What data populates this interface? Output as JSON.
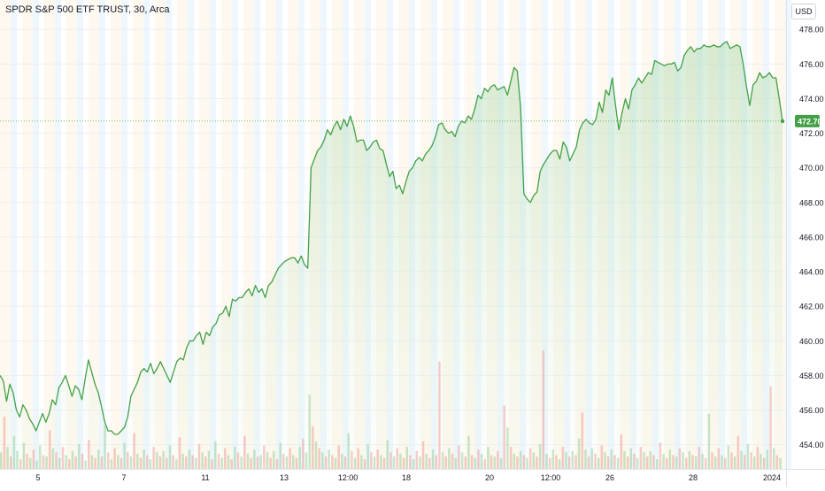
{
  "chart_data": {
    "type": "area",
    "title": "SPDR S&P 500 ETF TRUST, 30, Arca",
    "currency": "USD",
    "last_price": 472.7,
    "last_price_label": "472.70",
    "line_color": "#43a047",
    "fill_color": "#c8e6c9",
    "volume_up_color": "#4caf50",
    "volume_down_color": "#ef5350",
    "ylim": [
      452.6,
      479.7
    ],
    "y_ticks": [
      454,
      456,
      458,
      460,
      462,
      464,
      466,
      468,
      470,
      472,
      474,
      476,
      478
    ],
    "y_tick_labels": [
      "454.00",
      "456.00",
      "458.00",
      "460.00",
      "462.00",
      "464.00",
      "466.00",
      "468.00",
      "470.00",
      "472.00",
      "474.00",
      "476.00",
      "478.00"
    ],
    "x_tick_labels": [
      "5",
      "7",
      "11",
      "13",
      "12:00",
      "18",
      "20",
      "12:00",
      "26",
      "28",
      "2024"
    ],
    "grid": true,
    "series": [
      {
        "values": [
          458.0,
          457.7,
          456.5,
          457.5,
          457.0,
          456.0,
          455.6,
          456.3,
          456.0,
          455.5,
          455.2,
          454.8,
          455.3,
          455.8,
          455.3,
          455.8,
          456.6,
          456.3,
          457.3,
          457.6,
          458.0,
          457.4,
          456.8,
          457.4,
          457.2,
          456.6,
          457.8,
          458.9,
          458.2,
          457.5,
          457.0,
          456.2,
          455.3,
          454.8,
          454.8,
          454.6,
          454.6,
          454.8,
          455.0,
          455.6,
          456.8,
          457.2,
          457.6,
          458.2,
          458.4,
          458.2,
          458.7,
          458.1,
          458.4,
          458.8,
          458.4,
          458.0,
          457.6,
          458.2,
          458.8,
          459.0,
          458.9,
          459.6,
          460.0,
          460.0,
          460.3,
          460.5,
          459.8,
          460.5,
          460.3,
          460.8,
          461.0,
          461.5,
          461.6,
          462.0,
          461.4,
          462.4,
          462.3,
          462.5,
          462.5,
          462.8,
          463.0,
          462.6,
          463.2,
          462.8,
          463.0,
          462.5,
          463.2,
          463.4,
          463.8,
          464.2,
          464.4,
          464.6,
          464.7,
          464.8,
          464.8,
          464.5,
          464.9,
          464.4,
          464.2,
          470.0,
          470.5,
          471.0,
          471.2,
          471.6,
          472.2,
          471.9,
          472.4,
          472.7,
          472.2,
          472.8,
          472.4,
          473.0,
          472.4,
          471.5,
          471.6,
          471.6,
          471.0,
          471.2,
          471.5,
          471.6,
          471.1,
          471.0,
          470.2,
          469.5,
          469.8,
          468.8,
          469.0,
          468.5,
          469.2,
          469.8,
          470.0,
          470.4,
          470.6,
          470.4,
          470.8,
          471.0,
          471.3,
          471.8,
          472.5,
          472.6,
          472.2,
          472.0,
          472.1,
          471.8,
          472.4,
          472.7,
          472.6,
          473.0,
          472.8,
          473.4,
          474.2,
          474.0,
          474.6,
          474.4,
          474.7,
          474.8,
          474.5,
          474.6,
          474.7,
          474.2,
          475.0,
          475.8,
          475.6,
          473.5,
          468.5,
          468.2,
          468.0,
          468.4,
          468.6,
          469.8,
          470.2,
          470.5,
          470.8,
          471.0,
          471.0,
          470.5,
          471.5,
          471.2,
          470.4,
          470.8,
          471.2,
          472.2,
          472.6,
          472.8,
          472.6,
          472.5,
          472.8,
          473.8,
          473.2,
          474.5,
          474.2,
          475.2,
          473.6,
          472.2,
          473.2,
          474.0,
          473.4,
          474.5,
          474.8,
          475.2,
          474.9,
          475.2,
          475.5,
          475.4,
          476.2,
          476.1,
          476.0,
          475.9,
          476.0,
          476.0,
          476.1,
          475.6,
          475.8,
          476.5,
          476.8,
          477.0,
          476.7,
          476.9,
          476.9,
          477.1,
          477.0,
          477.0,
          477.1,
          477.0,
          477.0,
          477.2,
          477.3,
          476.9,
          477.0,
          477.1,
          477.0,
          476.0,
          474.7,
          473.6,
          474.8,
          475.0,
          475.5,
          475.2,
          475.3,
          475.5,
          475.2,
          475.2,
          474.0,
          472.7
        ]
      }
    ],
    "volume": [
      [
        1.2,
        1
      ],
      [
        3.8,
        0
      ],
      [
        1.6,
        1
      ],
      [
        0.9,
        0
      ],
      [
        2.4,
        1
      ],
      [
        1.3,
        1
      ],
      [
        0.7,
        0
      ],
      [
        1.9,
        1
      ],
      [
        1.1,
        0
      ],
      [
        0.8,
        1
      ],
      [
        1.4,
        0
      ],
      [
        0.6,
        1
      ],
      [
        1.7,
        1
      ],
      [
        1.0,
        0
      ],
      [
        0.9,
        1
      ],
      [
        2.8,
        0
      ],
      [
        1.5,
        1
      ],
      [
        1.2,
        0
      ],
      [
        0.8,
        1
      ],
      [
        1.6,
        0
      ],
      [
        1.0,
        1
      ],
      [
        0.7,
        0
      ],
      [
        1.3,
        1
      ],
      [
        0.9,
        0
      ],
      [
        1.8,
        1
      ],
      [
        1.1,
        0
      ],
      [
        0.6,
        1
      ],
      [
        2.1,
        0
      ],
      [
        1.0,
        1
      ],
      [
        0.8,
        0
      ],
      [
        1.4,
        1
      ],
      [
        0.9,
        0
      ],
      [
        3.2,
        1
      ],
      [
        1.2,
        0
      ],
      [
        0.7,
        1
      ],
      [
        1.5,
        0
      ],
      [
        1.0,
        1
      ],
      [
        0.8,
        0
      ],
      [
        1.9,
        1
      ],
      [
        1.2,
        0
      ],
      [
        0.9,
        1
      ],
      [
        2.6,
        0
      ],
      [
        1.1,
        1
      ],
      [
        0.8,
        0
      ],
      [
        1.4,
        1
      ],
      [
        1.0,
        0
      ],
      [
        0.7,
        1
      ],
      [
        1.6,
        0
      ],
      [
        1.2,
        1
      ],
      [
        0.9,
        0
      ],
      [
        1.3,
        1
      ],
      [
        0.8,
        0
      ],
      [
        1.7,
        1
      ],
      [
        1.0,
        0
      ],
      [
        0.7,
        1
      ],
      [
        2.3,
        0
      ],
      [
        1.1,
        1
      ],
      [
        0.9,
        0
      ],
      [
        1.4,
        1
      ],
      [
        1.0,
        0
      ],
      [
        0.8,
        1
      ],
      [
        1.8,
        0
      ],
      [
        1.2,
        1
      ],
      [
        0.9,
        0
      ],
      [
        1.3,
        1
      ],
      [
        0.7,
        0
      ],
      [
        2.0,
        1
      ],
      [
        1.1,
        0
      ],
      [
        0.8,
        1
      ],
      [
        1.5,
        0
      ],
      [
        1.0,
        1
      ],
      [
        0.7,
        0
      ],
      [
        1.6,
        1
      ],
      [
        1.2,
        0
      ],
      [
        0.9,
        1
      ],
      [
        2.4,
        0
      ],
      [
        1.1,
        1
      ],
      [
        0.8,
        0
      ],
      [
        1.4,
        1
      ],
      [
        0.9,
        0
      ],
      [
        1.0,
        1
      ],
      [
        1.7,
        0
      ],
      [
        1.2,
        1
      ],
      [
        0.8,
        0
      ],
      [
        1.3,
        1
      ],
      [
        0.7,
        0
      ],
      [
        1.9,
        1
      ],
      [
        1.1,
        0
      ],
      [
        0.9,
        1
      ],
      [
        1.5,
        0
      ],
      [
        1.0,
        1
      ],
      [
        0.8,
        0
      ],
      [
        1.6,
        1
      ],
      [
        2.2,
        0
      ],
      [
        1.2,
        1
      ],
      [
        5.4,
        1
      ],
      [
        3.1,
        0
      ],
      [
        2.0,
        1
      ],
      [
        1.5,
        0
      ],
      [
        1.2,
        1
      ],
      [
        0.9,
        0
      ],
      [
        1.4,
        1
      ],
      [
        1.0,
        0
      ],
      [
        0.8,
        1
      ],
      [
        1.7,
        0
      ],
      [
        1.1,
        1
      ],
      [
        0.9,
        0
      ],
      [
        2.6,
        1
      ],
      [
        1.3,
        0
      ],
      [
        0.8,
        1
      ],
      [
        1.5,
        0
      ],
      [
        1.0,
        1
      ],
      [
        0.7,
        0
      ],
      [
        1.8,
        1
      ],
      [
        1.2,
        0
      ],
      [
        0.9,
        1
      ],
      [
        1.4,
        0
      ],
      [
        1.0,
        1
      ],
      [
        0.8,
        0
      ],
      [
        2.1,
        1
      ],
      [
        1.2,
        0
      ],
      [
        0.9,
        1
      ],
      [
        1.5,
        0
      ],
      [
        1.1,
        1
      ],
      [
        0.8,
        0
      ],
      [
        1.6,
        1
      ],
      [
        1.0,
        0
      ],
      [
        0.7,
        1
      ],
      [
        1.3,
        0
      ],
      [
        0.9,
        1
      ],
      [
        2.0,
        0
      ],
      [
        1.1,
        1
      ],
      [
        0.8,
        0
      ],
      [
        1.4,
        1
      ],
      [
        1.0,
        0
      ],
      [
        7.8,
        0
      ],
      [
        1.2,
        1
      ],
      [
        0.9,
        0
      ],
      [
        1.5,
        1
      ],
      [
        1.1,
        0
      ],
      [
        0.8,
        1
      ],
      [
        1.7,
        0
      ],
      [
        1.2,
        1
      ],
      [
        0.9,
        0
      ],
      [
        2.4,
        1
      ],
      [
        1.0,
        0
      ],
      [
        0.8,
        1
      ],
      [
        1.4,
        0
      ],
      [
        1.1,
        1
      ],
      [
        0.7,
        0
      ],
      [
        1.6,
        1
      ],
      [
        1.0,
        0
      ],
      [
        0.9,
        1
      ],
      [
        1.3,
        0
      ],
      [
        0.8,
        1
      ],
      [
        4.6,
        0
      ],
      [
        3.0,
        1
      ],
      [
        1.6,
        0
      ],
      [
        1.1,
        1
      ],
      [
        0.9,
        0
      ],
      [
        1.3,
        1
      ],
      [
        1.0,
        0
      ],
      [
        0.8,
        1
      ],
      [
        1.5,
        0
      ],
      [
        1.2,
        1
      ],
      [
        0.9,
        0
      ],
      [
        1.8,
        1
      ],
      [
        8.6,
        0
      ],
      [
        1.1,
        1
      ],
      [
        0.8,
        0
      ],
      [
        1.4,
        1
      ],
      [
        1.0,
        0
      ],
      [
        0.7,
        1
      ],
      [
        1.6,
        0
      ],
      [
        1.2,
        1
      ],
      [
        0.9,
        0
      ],
      [
        1.3,
        1
      ],
      [
        1.0,
        0
      ],
      [
        2.2,
        1
      ],
      [
        4.1,
        0
      ],
      [
        1.4,
        1
      ],
      [
        0.9,
        0
      ],
      [
        1.5,
        1
      ],
      [
        1.1,
        0
      ],
      [
        0.8,
        1
      ],
      [
        1.7,
        0
      ],
      [
        1.2,
        1
      ],
      [
        0.9,
        0
      ],
      [
        1.4,
        1
      ],
      [
        1.0,
        0
      ],
      [
        0.8,
        1
      ],
      [
        2.5,
        0
      ],
      [
        1.3,
        1
      ],
      [
        0.9,
        0
      ],
      [
        1.5,
        1
      ],
      [
        1.1,
        0
      ],
      [
        0.8,
        1
      ],
      [
        1.6,
        0
      ],
      [
        1.2,
        1
      ],
      [
        0.9,
        0
      ],
      [
        1.3,
        1
      ],
      [
        1.0,
        0
      ],
      [
        0.7,
        1
      ],
      [
        1.9,
        0
      ],
      [
        1.1,
        1
      ],
      [
        0.8,
        0
      ],
      [
        1.4,
        1
      ],
      [
        1.0,
        0
      ],
      [
        0.9,
        1
      ],
      [
        1.5,
        0
      ],
      [
        1.2,
        1
      ],
      [
        0.8,
        0
      ],
      [
        1.3,
        1
      ],
      [
        1.0,
        0
      ],
      [
        0.9,
        1
      ],
      [
        1.6,
        0
      ],
      [
        1.1,
        1
      ],
      [
        0.8,
        0
      ],
      [
        4.0,
        1
      ],
      [
        1.2,
        0
      ],
      [
        0.9,
        1
      ],
      [
        1.5,
        0
      ],
      [
        1.0,
        1
      ],
      [
        0.8,
        0
      ],
      [
        1.7,
        1
      ],
      [
        1.2,
        0
      ],
      [
        0.9,
        1
      ],
      [
        2.4,
        0
      ],
      [
        1.3,
        1
      ],
      [
        1.0,
        0
      ],
      [
        1.8,
        1
      ],
      [
        1.2,
        0
      ],
      [
        0.9,
        1
      ],
      [
        1.6,
        0
      ],
      [
        1.1,
        1
      ],
      [
        0.8,
        0
      ],
      [
        1.4,
        1
      ],
      [
        6.0,
        0
      ],
      [
        1.5,
        1
      ],
      [
        1.0,
        0
      ],
      [
        0.8,
        1
      ]
    ],
    "session_bands_note": ""
  }
}
